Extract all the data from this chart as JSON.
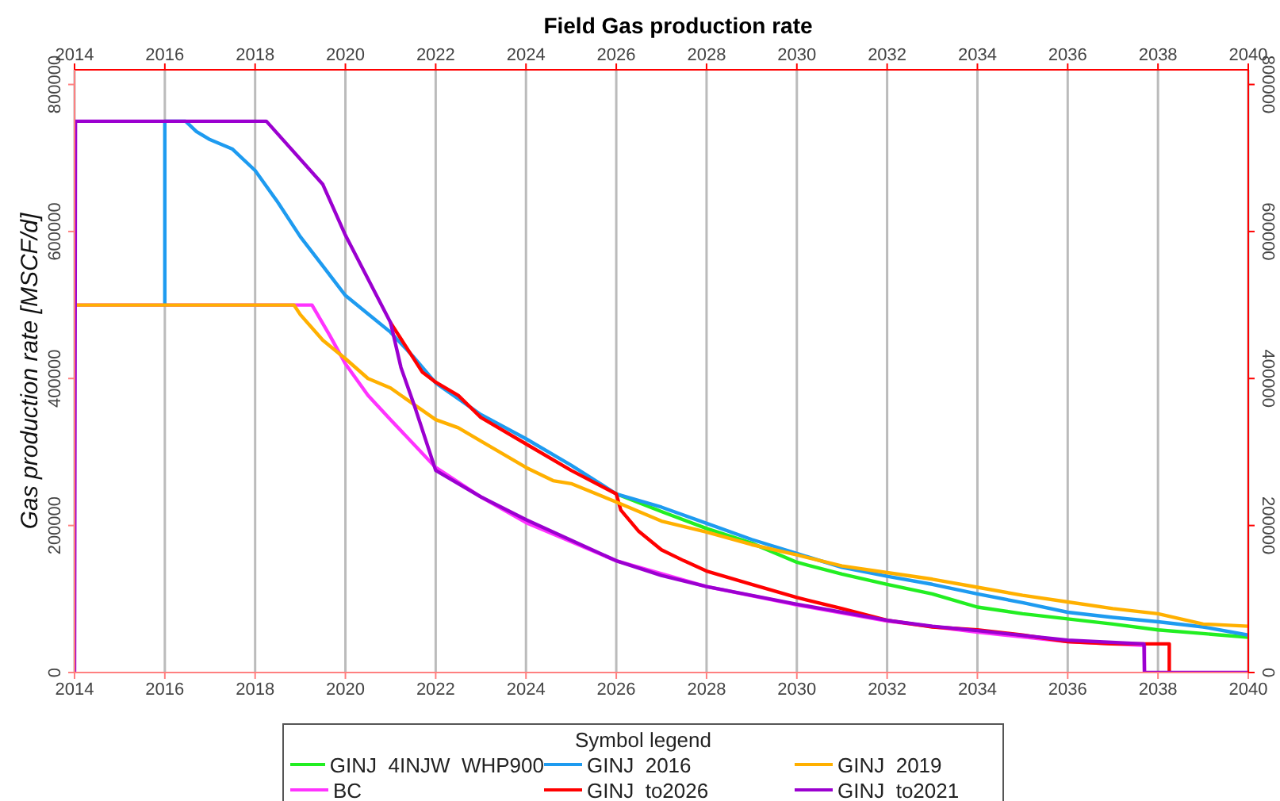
{
  "chart_data": {
    "type": "line",
    "title": "Field Gas production rate",
    "ylabel": "Gas production rate [MSCF/d]",
    "legend_title": "Symbol legend",
    "xlim": [
      2014,
      2040
    ],
    "xticks": [
      2014,
      2016,
      2018,
      2020,
      2022,
      2024,
      2026,
      2028,
      2030,
      2032,
      2034,
      2036,
      2038,
      2040
    ],
    "x2lim": [
      2014,
      2040
    ],
    "x2ticks": [
      2014,
      2016,
      2018,
      2020,
      2022,
      2024,
      2026,
      2028,
      2030,
      2032,
      2034,
      2036,
      2038,
      2040
    ],
    "ylim": [
      0,
      820000
    ],
    "yticks": [
      0,
      200000,
      400000,
      600000,
      800000
    ],
    "y2lim": [
      0,
      820000
    ],
    "y2ticks": [
      0,
      200000,
      400000,
      600000,
      800000
    ],
    "grid": "x",
    "legend": "bottom",
    "series": [
      {
        "name": "GINJ  4INJW  WHP900",
        "color": "#22ee22",
        "x": [
          2026,
          2027,
          2028,
          2029,
          2030,
          2031,
          2032,
          2033,
          2034,
          2035,
          2036,
          2037,
          2038,
          2039,
          2040
        ],
        "values": [
          243000,
          219000,
          196000,
          176000,
          150000,
          134000,
          120000,
          107000,
          89000,
          80000,
          73000,
          66000,
          58000,
          53000,
          48000
        ]
      },
      {
        "name": "BC",
        "color": "#ff33ff",
        "x": [
          2014,
          2019.26,
          2019.65,
          2020,
          2020.5,
          2021,
          2022,
          2023,
          2024,
          2025,
          2026,
          2028,
          2030,
          2032,
          2034,
          2036,
          2037.7,
          2037.7
        ],
        "values": [
          500000,
          500000,
          459000,
          420000,
          377000,
          344000,
          279000,
          239000,
          204000,
          178000,
          152000,
          117000,
          92000,
          70000,
          55000,
          42000,
          37000,
          0
        ]
      },
      {
        "name": "GINJ  2016",
        "color": "#1e9bf0",
        "x": [
          2016,
          2016,
          2016.46,
          2016.7,
          2017,
          2017.5,
          2018,
          2018.5,
          2019,
          2019.5,
          2020,
          2020.5,
          2021,
          2021.5,
          2022,
          2023,
          2024,
          2025,
          2026,
          2027,
          2028,
          2029,
          2030,
          2031,
          2032,
          2033,
          2034,
          2035,
          2036,
          2037,
          2038,
          2039,
          2040
        ],
        "values": [
          500000,
          750000,
          750000,
          736000,
          725000,
          712000,
          683000,
          640000,
          593000,
          553000,
          513000,
          488000,
          463000,
          430000,
          394000,
          351000,
          318000,
          282000,
          243000,
          225000,
          203000,
          181000,
          162000,
          143000,
          131000,
          120000,
          107000,
          95000,
          82000,
          75000,
          69000,
          62000,
          51000
        ]
      },
      {
        "name": "GINJ  to2026",
        "color": "#ff0000",
        "x": [
          2021,
          2021.7,
          2022,
          2022.5,
          2023,
          2024,
          2025,
          2026,
          2026.1,
          2026.5,
          2027,
          2027.5,
          2028,
          2029,
          2030,
          2031,
          2032,
          2033,
          2034,
          2035,
          2036,
          2037,
          2038.25,
          2038.25
        ],
        "values": [
          476000,
          409000,
          395000,
          377000,
          347000,
          311000,
          275000,
          243000,
          221000,
          192000,
          167000,
          152000,
          138000,
          120000,
          102000,
          87000,
          71000,
          62000,
          58000,
          51000,
          42000,
          39000,
          39000,
          0
        ]
      },
      {
        "name": "GINJ  2019",
        "color": "#ffb000",
        "x": [
          2014,
          2018.86,
          2019,
          2019.5,
          2020,
          2020.5,
          2021,
          2022,
          2022.5,
          2023,
          2024,
          2024.6,
          2025,
          2026,
          2027,
          2028,
          2029,
          2030,
          2031,
          2032,
          2033,
          2034,
          2035,
          2036,
          2037,
          2038,
          2039,
          2040
        ],
        "values": [
          500000,
          500000,
          487000,
          452000,
          427000,
          400000,
          387000,
          344000,
          333000,
          315000,
          279000,
          261000,
          257000,
          232000,
          206000,
          191000,
          174000,
          160000,
          145000,
          136000,
          127000,
          116000,
          105000,
          96000,
          87000,
          80000,
          66000,
          63000
        ]
      },
      {
        "name": "GINJ  to2021",
        "color": "#9b00d0",
        "x": [
          2014,
          2014.02,
          2018.25,
          2019.5,
          2020,
          2021,
          2021.23,
          2021.54,
          2022,
          2023,
          2024,
          2026,
          2027,
          2028,
          2030,
          2032,
          2033,
          2034,
          2036,
          2037.69,
          2037.7,
          2040
        ],
        "values": [
          0,
          750000,
          750000,
          664000,
          595000,
          476000,
          415000,
          361000,
          275000,
          239000,
          208000,
          152000,
          132000,
          117000,
          93000,
          71000,
          63000,
          57000,
          44000,
          39000,
          0,
          0
        ]
      }
    ]
  }
}
